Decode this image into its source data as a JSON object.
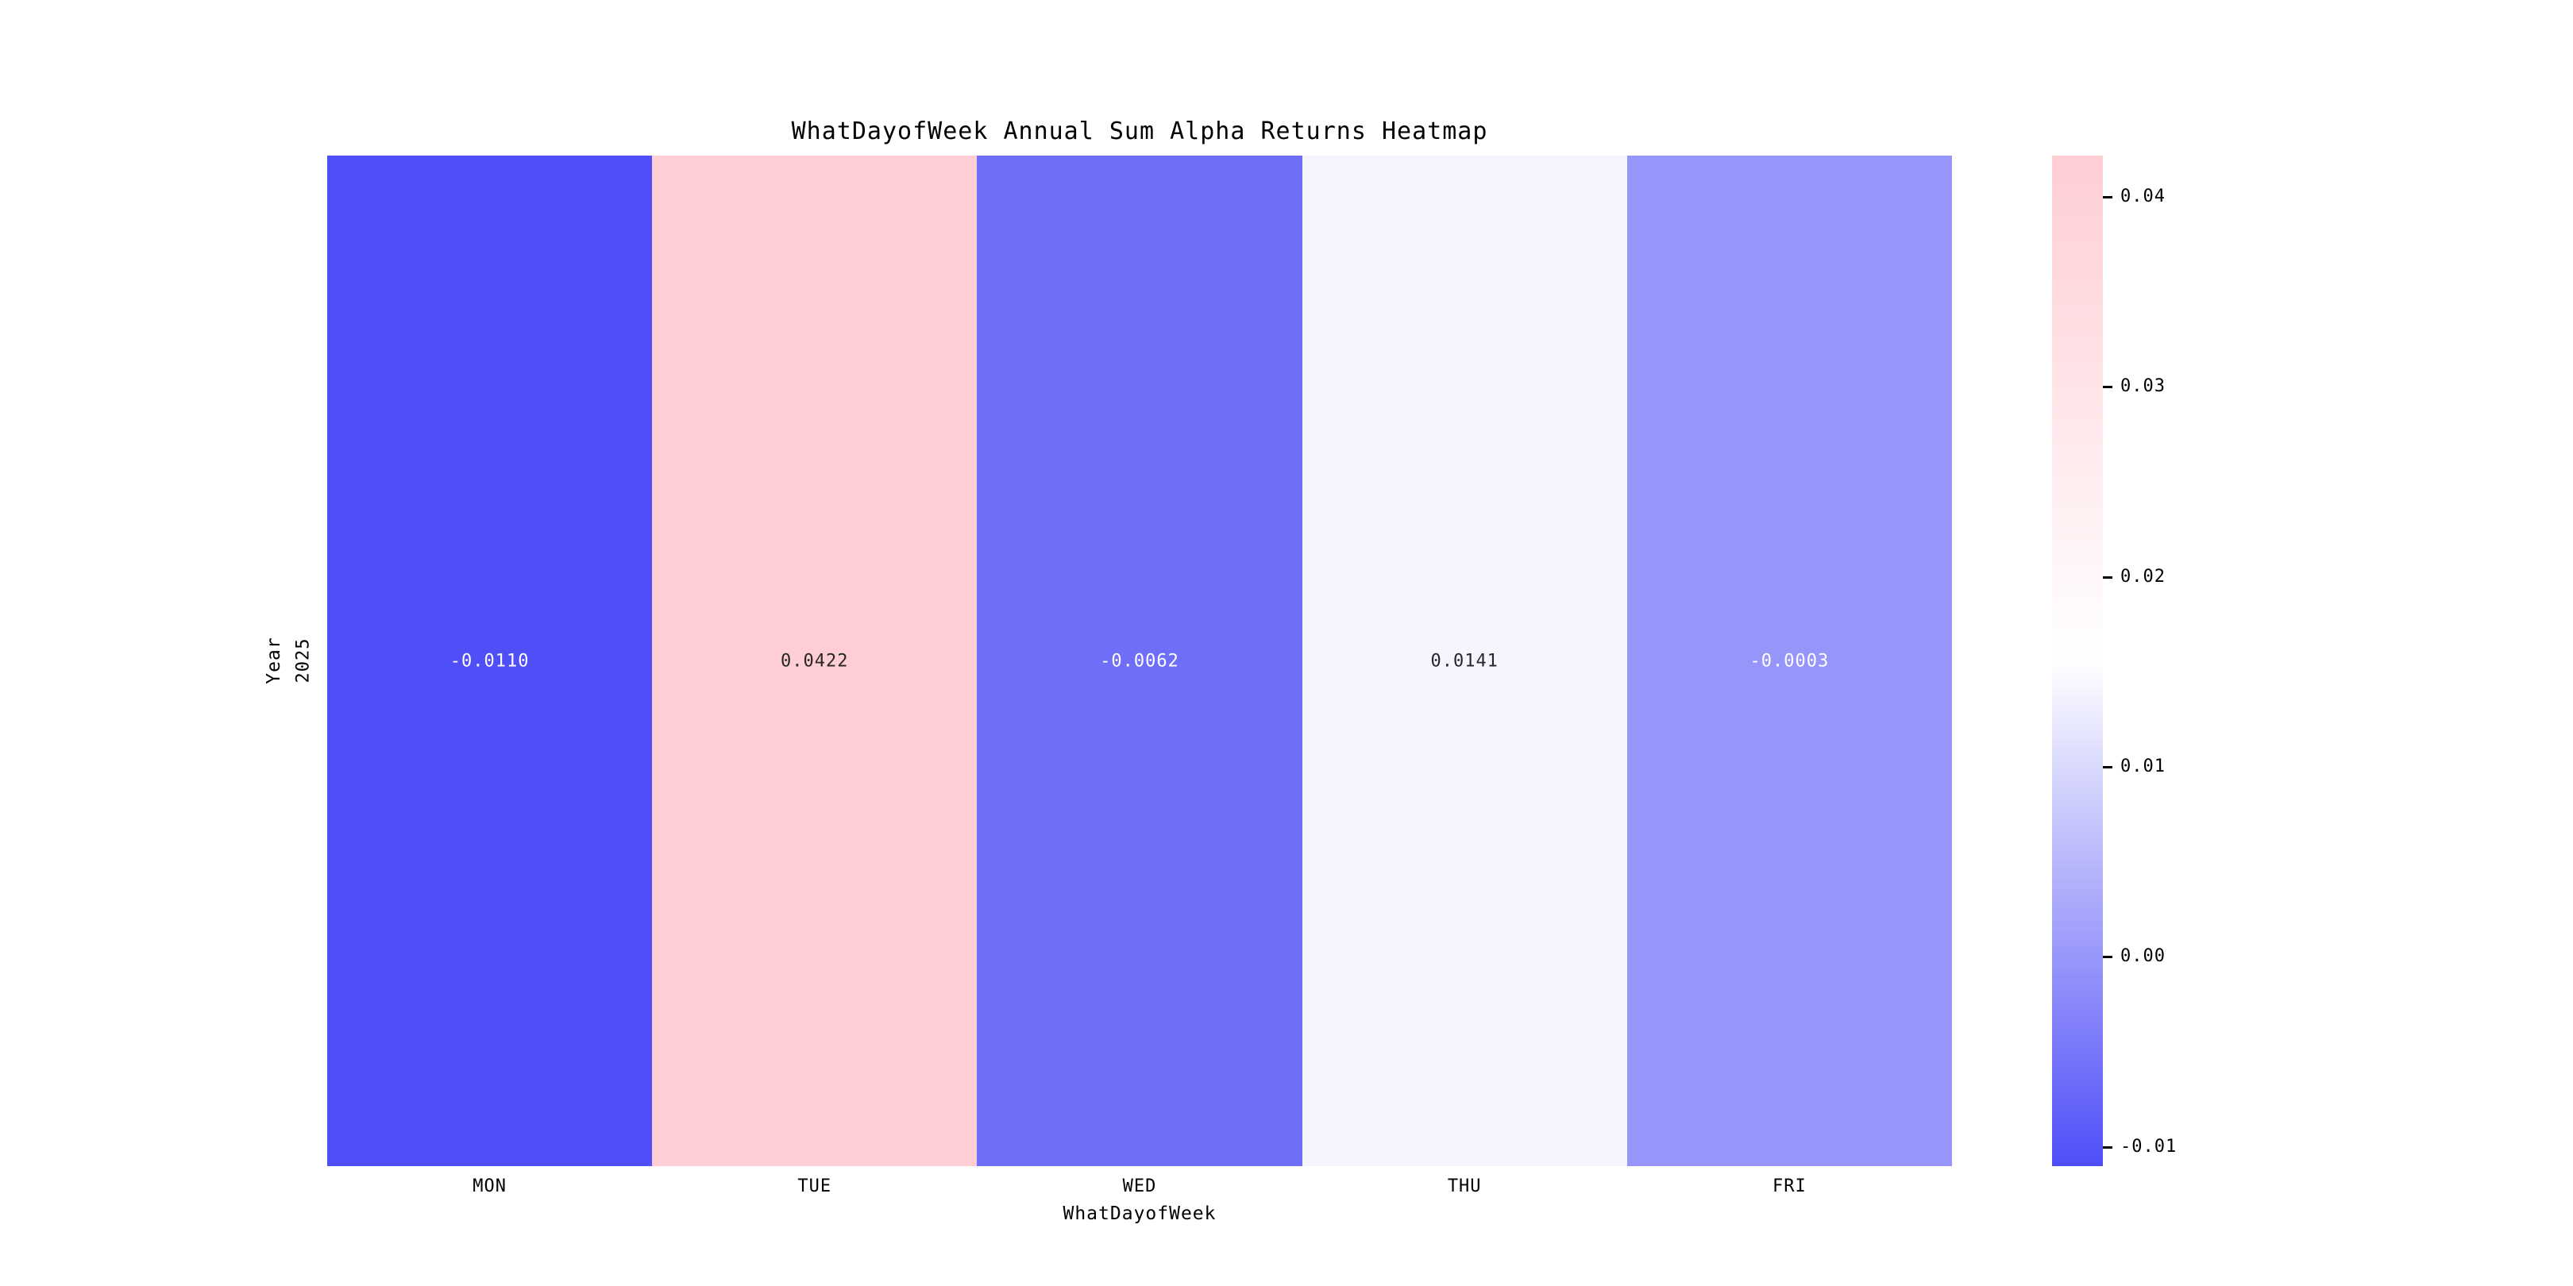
{
  "figure": {
    "title": "WhatDayofWeek Annual Sum Alpha Returns Heatmap",
    "xlabel": "WhatDayofWeek",
    "ylabel": "Year",
    "row_label": "2025",
    "background_color": "#ffffff"
  },
  "chart_data": {
    "type": "heatmap",
    "title": "WhatDayofWeek Annual Sum Alpha Returns Heatmap",
    "xlabel": "WhatDayofWeek",
    "ylabel": "Year",
    "columns": [
      "MON",
      "TUE",
      "WED",
      "THU",
      "FRI"
    ],
    "rows": [
      "2025"
    ],
    "values": [
      [
        -0.011,
        0.0422,
        -0.0062,
        0.0141,
        -0.0003
      ]
    ],
    "annotations": [
      [
        "-0.0110",
        "0.0422",
        "-0.0062",
        "0.0141",
        "-0.0003"
      ]
    ],
    "vmin": -0.011,
    "vmax": 0.0422,
    "grid": false,
    "legend_position": "right-colorbar",
    "colormap": {
      "min_color": "#4f4ef7",
      "mid_color": "#ffffff",
      "max_color": "#ffcdd4",
      "annotation_light_text": "#ffffff",
      "annotation_dark_text": "#262626"
    },
    "colorbar_ticks": [
      {
        "value": 0.04,
        "label": "0.04"
      },
      {
        "value": 0.03,
        "label": "0.03"
      },
      {
        "value": 0.02,
        "label": "0.02"
      },
      {
        "value": 0.01,
        "label": "0.01"
      },
      {
        "value": 0.0,
        "label": "0.00"
      },
      {
        "value": -0.01,
        "label": "-0.01"
      }
    ]
  }
}
